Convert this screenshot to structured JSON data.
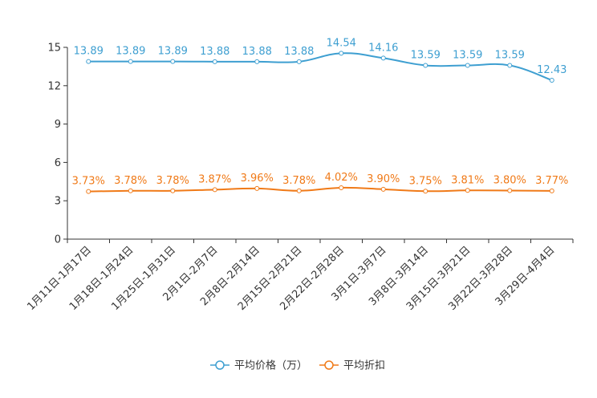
{
  "chart_data": {
    "type": "line",
    "categories": [
      "1月11日-1月17日",
      "1月18日-1月24日",
      "1月25日-1月31日",
      "2月1日-2月7日",
      "2月8日-2月14日",
      "2月15日-2月21日",
      "2月22日-2月28日",
      "3月1日-3月7日",
      "3月8日-3月14日",
      "3月15日-3月21日",
      "3月22日-3月28日",
      "3月29日-4月4日"
    ],
    "ylim": [
      0,
      15
    ],
    "yticks": [
      0,
      3,
      6,
      9,
      12,
      15
    ],
    "ytick_labels": [
      "0",
      "3",
      "6",
      "9",
      "12",
      "15"
    ],
    "grid": false,
    "series": [
      {
        "name": "平均价格（万）",
        "color": "#3e9fd1",
        "values": [
          13.89,
          13.89,
          13.89,
          13.88,
          13.88,
          13.88,
          14.54,
          14.16,
          13.59,
          13.59,
          13.59,
          12.43
        ],
        "labels": [
          "13.89",
          "13.89",
          "13.89",
          "13.88",
          "13.88",
          "13.88",
          "14.54",
          "14.16",
          "13.59",
          "13.59",
          "13.59",
          "12.43"
        ]
      },
      {
        "name": "平均折扣",
        "color": "#f07a18",
        "values": [
          3.73,
          3.78,
          3.78,
          3.87,
          3.96,
          3.78,
          4.02,
          3.9,
          3.75,
          3.81,
          3.8,
          3.77
        ],
        "labels": [
          "3.73%",
          "3.78%",
          "3.78%",
          "3.87%",
          "3.96%",
          "3.78%",
          "4.02%",
          "3.90%",
          "3.75%",
          "3.81%",
          "3.80%",
          "3.77%"
        ]
      }
    ],
    "legend_position": "bottom-center"
  }
}
